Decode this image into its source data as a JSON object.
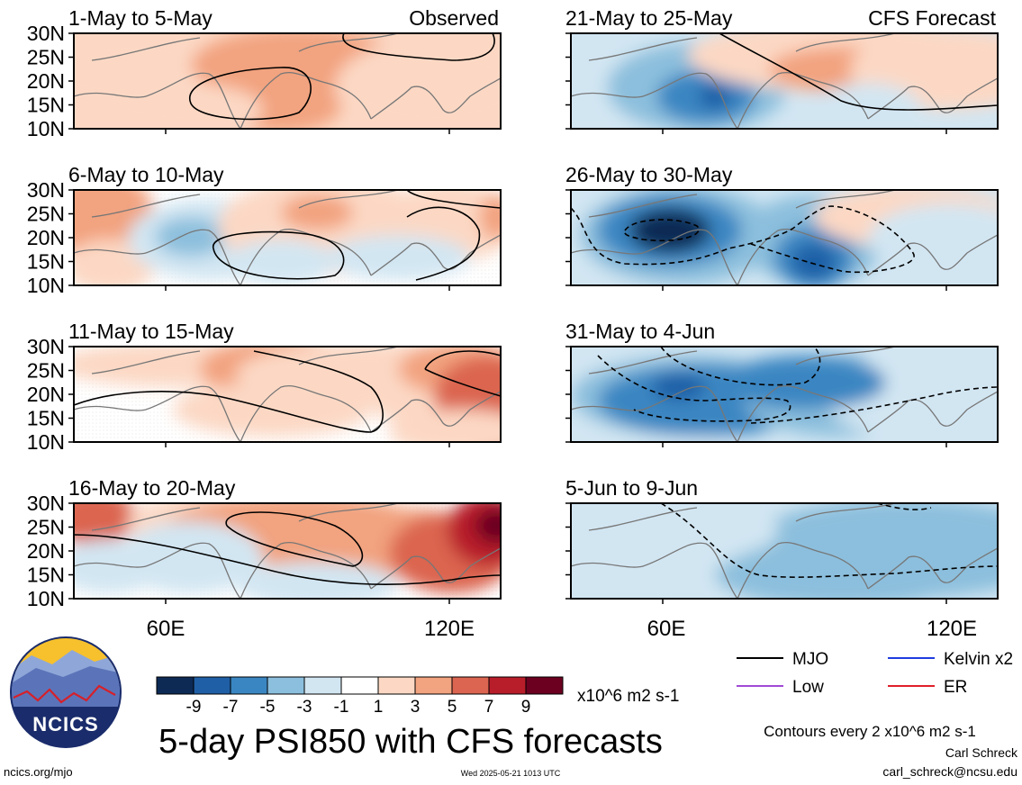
{
  "chart_data": {
    "type": "heatmap",
    "title": "5-day PSI850 with CFS forecasts",
    "y_ticks": [
      "30N",
      "25N",
      "20N",
      "15N",
      "10N"
    ],
    "x_ticks": [
      "60E",
      "120E"
    ],
    "lat_range": [
      10,
      30
    ],
    "lon_range": [
      40,
      130
    ],
    "observed_label": "Observed",
    "forecast_label": "CFS Forecast",
    "panels": [
      {
        "period": "1-May to 5-May",
        "kind": "observed"
      },
      {
        "period": "6-May to 10-May",
        "kind": "observed"
      },
      {
        "period": "11-May to 15-May",
        "kind": "observed"
      },
      {
        "period": "16-May to 20-May",
        "kind": "observed"
      },
      {
        "period": "21-May to 25-May",
        "kind": "forecast"
      },
      {
        "period": "26-May to 30-May",
        "kind": "forecast"
      },
      {
        "period": "31-May to 4-Jun",
        "kind": "forecast"
      },
      {
        "period": "5-Jun to 9-Jun",
        "kind": "forecast"
      }
    ],
    "colorbar": {
      "levels": [
        "-9",
        "-7",
        "-5",
        "-3",
        "-1",
        "1",
        "3",
        "5",
        "7",
        "9"
      ],
      "colors": [
        "#0d2a55",
        "#1f5fa6",
        "#3a86c2",
        "#8cbfdd",
        "#d2e6f2",
        "#ffffff",
        "#fcd8c4",
        "#f2a37f",
        "#db6550",
        "#b81d2a",
        "#6b0021"
      ],
      "units": "x10^6 m2 s-1"
    },
    "legend": [
      {
        "label": "MJO",
        "color": "#000000"
      },
      {
        "label": "Kelvin x2",
        "color": "#1f3de0"
      },
      {
        "label": "Low",
        "color": "#a04ad6"
      },
      {
        "label": "ER",
        "color": "#e0202a"
      }
    ],
    "contour_note": "Contours every 2 x10^6 m2 s-1"
  },
  "footer": {
    "logo_text": "NCICS",
    "url": "ncics.org/mjo",
    "timestamp": "Wed 2025-05-21 1013 UTC",
    "author": "Carl Schreck",
    "email": "carl_schreck@ncsu.edu"
  }
}
